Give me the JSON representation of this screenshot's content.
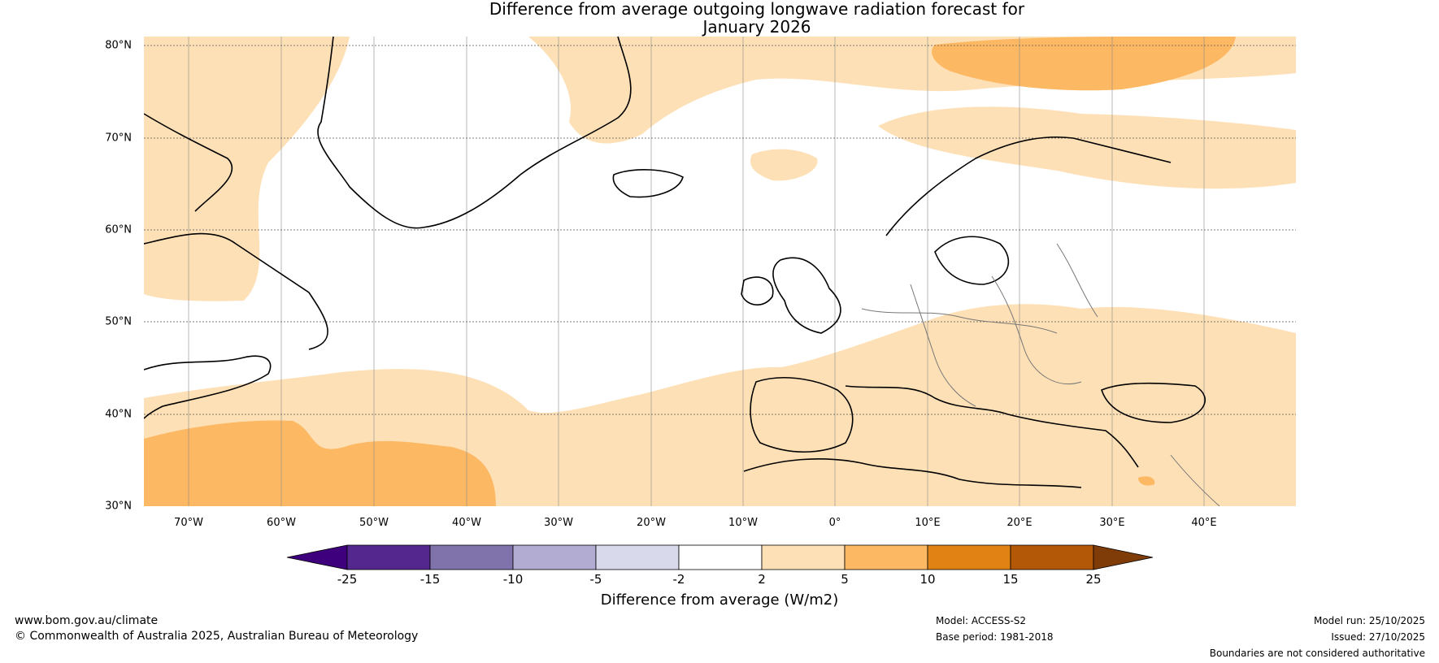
{
  "title_line1": "Difference from average outgoing longwave radiation forecast for",
  "title_line2": "January 2026",
  "map": {
    "lat_labels": [
      "80°N",
      "70°N",
      "60°N",
      "50°N",
      "40°N",
      "30°N"
    ],
    "lon_labels": [
      "70°W",
      "60°W",
      "50°W",
      "40°W",
      "30°W",
      "20°W",
      "10°W",
      "0°",
      "10°E",
      "20°E",
      "30°E",
      "40°E"
    ],
    "extent": {
      "lon_min": -75,
      "lon_max": 50,
      "lat_min": 30,
      "lat_max": 81
    }
  },
  "colorbar": {
    "tick_labels": [
      "-25",
      "-15",
      "-10",
      "-5",
      "-2",
      "2",
      "5",
      "10",
      "15",
      "25"
    ],
    "colors": [
      "#3f007d",
      "#54278f",
      "#8073ac",
      "#b2abd2",
      "#d8daeb",
      "#ffffff",
      "#fee0b6",
      "#fdb863",
      "#e08214",
      "#b35806",
      "#7f3b08"
    ],
    "label": "Difference from average (W/m2)"
  },
  "footer": {
    "website": "www.bom.gov.au/climate",
    "copyright": "© Commonwealth of Australia 2025, Australian Bureau of Meteorology",
    "model": "Model: ACCESS-S2",
    "base_period": "Base period: 1981-2018",
    "model_run": "Model run: 25/10/2025",
    "issued": "Issued: 27/10/2025",
    "disclaimer": "Boundaries are not considered authoritative"
  }
}
